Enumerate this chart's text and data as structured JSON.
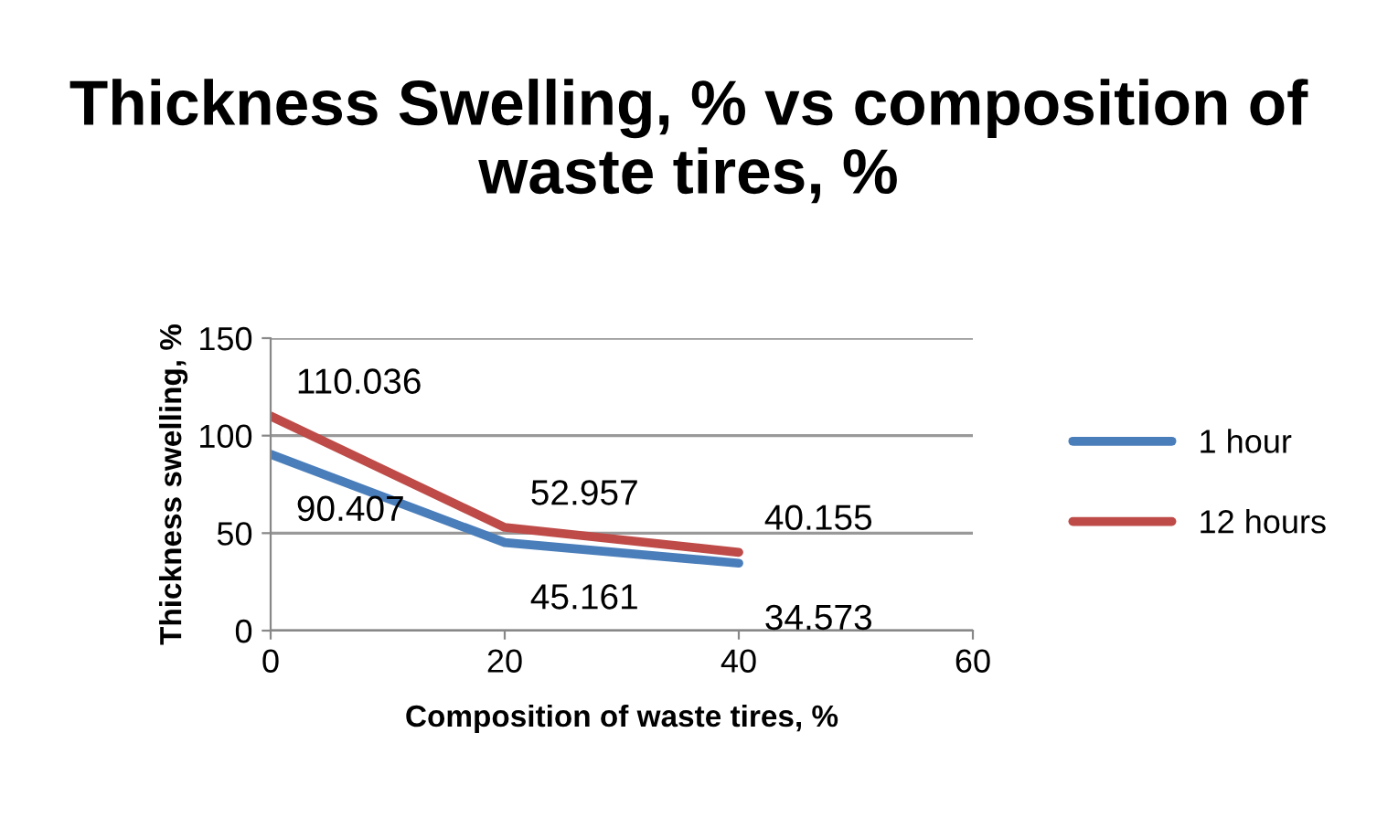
{
  "chart_data": {
    "type": "line",
    "title": "Thickness Swelling, % vs composition of waste tires, %",
    "xlabel": "Composition of waste tires, %",
    "ylabel": "Thickness swelling, %",
    "x": [
      0,
      20,
      40
    ],
    "series": [
      {
        "name": "1 hour",
        "color": "#4a7ebb",
        "values": [
          90.407,
          45.161,
          34.573
        ]
      },
      {
        "name": "12 hours",
        "color": "#be4b48",
        "values": [
          110.036,
          52.957,
          40.155
        ]
      }
    ],
    "xlim": [
      0,
      60
    ],
    "xticks": [
      0,
      20,
      40,
      60
    ],
    "ylim": [
      0,
      150
    ],
    "yticks": [
      0,
      50,
      100,
      150
    ],
    "grid": "y",
    "legend": "right",
    "data_labels": true,
    "marker": "none",
    "line_style": "solid"
  }
}
